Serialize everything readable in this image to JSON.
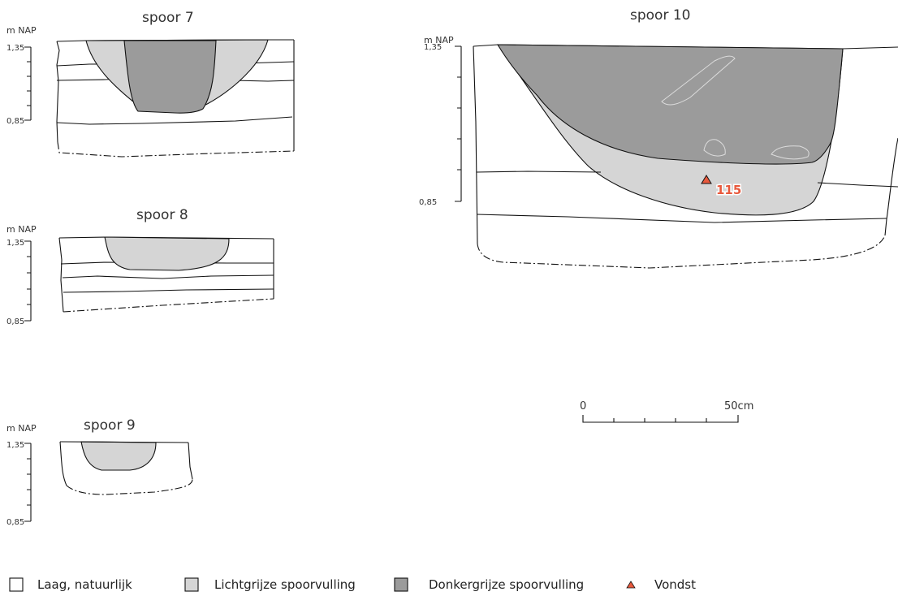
{
  "axis": {
    "unit_label": "m NAP",
    "top_tick": "1,35",
    "bottom_tick": "0,85"
  },
  "sections": [
    {
      "title": "spoor 7"
    },
    {
      "title": "spoor 8"
    },
    {
      "title": "spoor 9"
    },
    {
      "title": "spoor 10"
    }
  ],
  "find": {
    "number": "115"
  },
  "scale": {
    "start_label": "0",
    "end_label": "50cm"
  },
  "legend": [
    {
      "label": "Laag, natuurlijk",
      "color": "#ffffff"
    },
    {
      "label": "Lichtgrijze spoorvulling",
      "color": "#d5d5d5"
    },
    {
      "label": "Donkergrijze spoorvulling",
      "color": "#9b9b9b"
    },
    {
      "label": "Vondst",
      "color": "#e8593d"
    }
  ]
}
